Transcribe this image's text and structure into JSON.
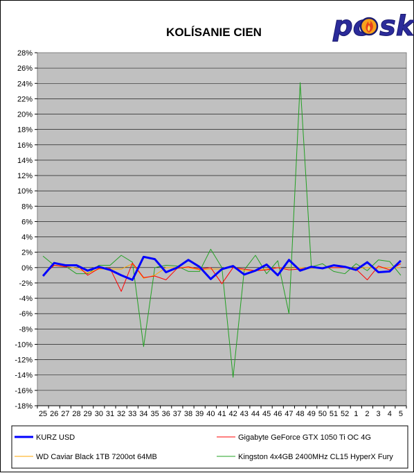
{
  "chart_data": {
    "type": "line",
    "title": "KOLÍSANIE CIEN",
    "xlabel": "",
    "ylabel": "",
    "ylim": [
      -18,
      28
    ],
    "y_ticks": [
      28,
      26,
      24,
      22,
      20,
      18,
      16,
      14,
      12,
      10,
      8,
      6,
      4,
      2,
      0,
      -2,
      -4,
      -6,
      -8,
      -10,
      -12,
      -14,
      -16,
      -18
    ],
    "y_tick_suffix": "%",
    "grid": true,
    "legend_position": "bottom",
    "categories": [
      "25",
      "26",
      "27",
      "28",
      "29",
      "30",
      "31",
      "32",
      "33",
      "34",
      "35",
      "36",
      "37",
      "38",
      "39",
      "40",
      "41",
      "42",
      "43",
      "44",
      "45",
      "46",
      "47",
      "48",
      "49",
      "50",
      "51",
      "52",
      "1",
      "2",
      "3",
      "4",
      "5"
    ],
    "series": [
      {
        "name": "KURZ USD",
        "color": "#0000ff",
        "values": [
          -1.1,
          0.6,
          0.3,
          0.3,
          -0.4,
          0.1,
          -0.3,
          -1.0,
          -1.6,
          1.4,
          1.1,
          -0.6,
          0.0,
          1.0,
          0.1,
          -1.5,
          -0.2,
          0.2,
          -0.9,
          -0.4,
          0.4,
          -1.0,
          1.0,
          -0.4,
          0.1,
          -0.1,
          0.3,
          0.1,
          -0.3,
          0.7,
          -0.6,
          -0.5,
          0.9
        ]
      },
      {
        "name": "Gigabyte GeForce GTX 1050 Ti OC 4G",
        "color": "#ff0000",
        "values": [
          -1.0,
          0.3,
          0.1,
          0.4,
          -1.0,
          -0.1,
          -0.1,
          -3.1,
          0.6,
          -1.3,
          -1.1,
          -1.6,
          -0.1,
          0.1,
          -0.2,
          0.0,
          -2.1,
          0.0,
          -0.2,
          -0.4,
          -0.3,
          0.0,
          -0.3,
          -0.2,
          0.0,
          0.0,
          0.0,
          0.0,
          -0.2,
          -1.6,
          0.2,
          -0.3,
          0.5
        ]
      },
      {
        "name": "WD Caviar Black 1TB 7200ot 64MB",
        "color": "#ffa500",
        "values": [
          -1.0,
          0.3,
          0.2,
          -0.1,
          -0.7,
          -0.2,
          -0.2,
          -0.2,
          0.5,
          -1.4,
          -1.0,
          0.0,
          0.0,
          0.0,
          -0.3,
          -0.2,
          -0.2,
          0.1,
          -0.4,
          -0.4,
          -0.2,
          0.0,
          -0.1,
          0.0,
          -0.1,
          0.0,
          0.0,
          0.0,
          -0.1,
          0.0,
          0.0,
          0.0,
          0.0
        ]
      },
      {
        "name": "Kingston 4x4GB 2400MHz CL15 HyperX Fury",
        "color": "#22a022",
        "values": [
          1.5,
          0.3,
          0.2,
          -0.8,
          -0.8,
          0.3,
          0.3,
          1.6,
          0.7,
          -10.3,
          0.0,
          0.3,
          0.2,
          -0.5,
          -0.5,
          2.4,
          0.0,
          -14.3,
          -0.3,
          1.6,
          -0.8,
          0.9,
          -6.0,
          24.1,
          0.1,
          0.5,
          -0.5,
          -0.8,
          0.5,
          -0.4,
          1.0,
          0.8,
          -1.0
        ]
      }
    ]
  }
}
